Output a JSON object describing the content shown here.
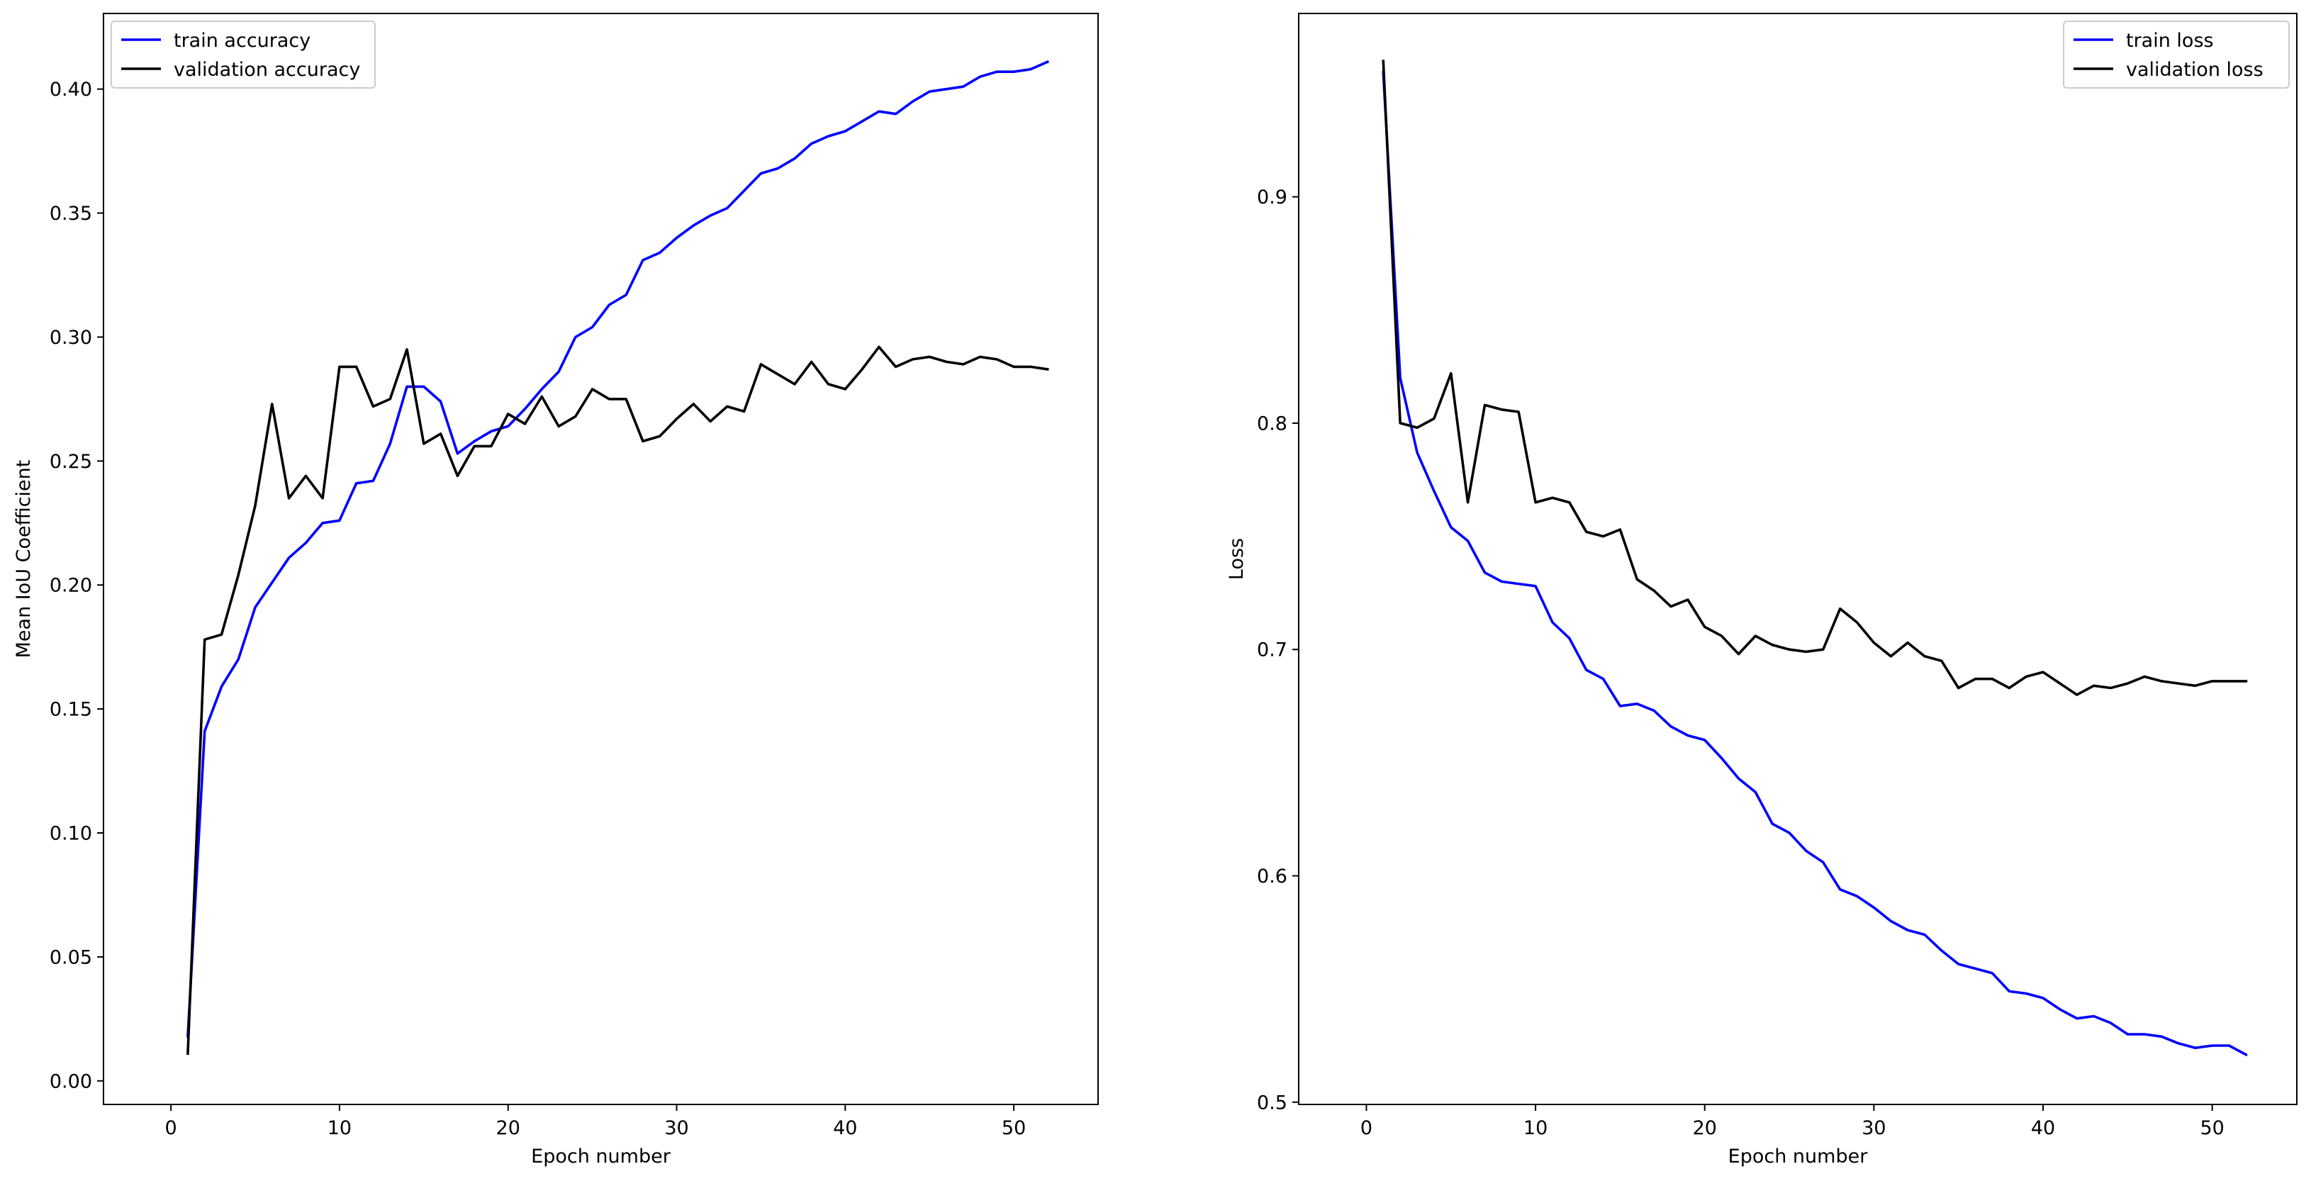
{
  "chart_data": [
    {
      "type": "line",
      "xlabel": "Epoch number",
      "ylabel": "Mean IoU Coefficient",
      "xlim": [
        -4,
        55
      ],
      "ylim": [
        -0.0095,
        0.4305
      ],
      "xticks": [
        0,
        10,
        20,
        30,
        40,
        50
      ],
      "xtick_labels": [
        "0",
        "10",
        "20",
        "30",
        "40",
        "50"
      ],
      "yticks": [
        0.0,
        0.05,
        0.1,
        0.15,
        0.2,
        0.25,
        0.3,
        0.35,
        0.4
      ],
      "ytick_labels": [
        "0.00",
        "0.05",
        "0.10",
        "0.15",
        "0.20",
        "0.25",
        "0.30",
        "0.35",
        "0.40"
      ],
      "legend_position": "top-left",
      "grid": false,
      "series": [
        {
          "name": "train accuracy",
          "color": "#0000ff",
          "x": [
            1,
            2,
            3,
            4,
            5,
            6,
            7,
            8,
            9,
            10,
            11,
            12,
            13,
            14,
            15,
            16,
            17,
            18,
            19,
            20,
            21,
            22,
            23,
            24,
            25,
            26,
            27,
            28,
            29,
            30,
            31,
            32,
            33,
            34,
            35,
            36,
            37,
            38,
            39,
            40,
            41,
            42,
            43,
            44,
            45,
            46,
            47,
            48,
            49,
            50,
            51,
            52
          ],
          "y": [
            0.018,
            0.141,
            0.159,
            0.17,
            0.191,
            0.201,
            0.211,
            0.217,
            0.225,
            0.226,
            0.241,
            0.242,
            0.257,
            0.28,
            0.28,
            0.274,
            0.253,
            0.258,
            0.262,
            0.264,
            0.271,
            0.279,
            0.286,
            0.3,
            0.304,
            0.313,
            0.317,
            0.331,
            0.334,
            0.34,
            0.345,
            0.349,
            0.352,
            0.359,
            0.366,
            0.368,
            0.372,
            0.378,
            0.381,
            0.383,
            0.387,
            0.391,
            0.39,
            0.395,
            0.399,
            0.4,
            0.401,
            0.405,
            0.407,
            0.407,
            0.408,
            0.411
          ]
        },
        {
          "name": "validation accuracy",
          "color": "#000000",
          "x": [
            1,
            2,
            3,
            4,
            5,
            6,
            7,
            8,
            9,
            10,
            11,
            12,
            13,
            14,
            15,
            16,
            17,
            18,
            19,
            20,
            21,
            22,
            23,
            24,
            25,
            26,
            27,
            28,
            29,
            30,
            31,
            32,
            33,
            34,
            35,
            36,
            37,
            38,
            39,
            40,
            41,
            42,
            43,
            44,
            45,
            46,
            47,
            48,
            49,
            50,
            51,
            52
          ],
          "y": [
            0.011,
            0.178,
            0.18,
            0.204,
            0.232,
            0.273,
            0.235,
            0.244,
            0.235,
            0.288,
            0.288,
            0.272,
            0.275,
            0.295,
            0.257,
            0.261,
            0.244,
            0.256,
            0.256,
            0.269,
            0.265,
            0.276,
            0.264,
            0.268,
            0.279,
            0.275,
            0.275,
            0.258,
            0.26,
            0.267,
            0.273,
            0.266,
            0.272,
            0.27,
            0.289,
            0.285,
            0.281,
            0.29,
            0.281,
            0.279,
            0.287,
            0.296,
            0.288,
            0.291,
            0.292,
            0.29,
            0.289,
            0.292,
            0.291,
            0.288,
            0.288,
            0.287
          ]
        }
      ]
    },
    {
      "type": "line",
      "xlabel": "Epoch number",
      "ylabel": "Loss",
      "xlim": [
        -4,
        55
      ],
      "ylim": [
        0.499,
        0.981
      ],
      "xticks": [
        0,
        10,
        20,
        30,
        40,
        50
      ],
      "xtick_labels": [
        "0",
        "10",
        "20",
        "30",
        "40",
        "50"
      ],
      "yticks": [
        0.5,
        0.6,
        0.7,
        0.8,
        0.9
      ],
      "ytick_labels": [
        "0.5",
        "0.6",
        "0.7",
        "0.8",
        "0.9"
      ],
      "legend_position": "top-right",
      "grid": false,
      "series": [
        {
          "name": "train loss",
          "color": "#0000ff",
          "x": [
            1,
            2,
            3,
            4,
            5,
            6,
            7,
            8,
            9,
            10,
            11,
            12,
            13,
            14,
            15,
            16,
            17,
            18,
            19,
            20,
            21,
            22,
            23,
            24,
            25,
            26,
            27,
            28,
            29,
            30,
            31,
            32,
            33,
            34,
            35,
            36,
            37,
            38,
            39,
            40,
            41,
            42,
            43,
            44,
            45,
            46,
            47,
            48,
            49,
            50,
            51,
            52
          ],
          "y": [
            0.955,
            0.82,
            0.787,
            0.77,
            0.754,
            0.748,
            0.734,
            0.73,
            0.729,
            0.728,
            0.712,
            0.705,
            0.691,
            0.687,
            0.675,
            0.676,
            0.673,
            0.666,
            0.662,
            0.66,
            0.652,
            0.643,
            0.637,
            0.623,
            0.619,
            0.611,
            0.606,
            0.594,
            0.591,
            0.586,
            0.58,
            0.576,
            0.574,
            0.567,
            0.561,
            0.559,
            0.557,
            0.549,
            0.548,
            0.546,
            0.541,
            0.537,
            0.538,
            0.535,
            0.53,
            0.53,
            0.529,
            0.526,
            0.524,
            0.525,
            0.525,
            0.521
          ]
        },
        {
          "name": "validation loss",
          "color": "#000000",
          "x": [
            1,
            2,
            3,
            4,
            5,
            6,
            7,
            8,
            9,
            10,
            11,
            12,
            13,
            14,
            15,
            16,
            17,
            18,
            19,
            20,
            21,
            22,
            23,
            24,
            25,
            26,
            27,
            28,
            29,
            30,
            31,
            32,
            33,
            34,
            35,
            36,
            37,
            38,
            39,
            40,
            41,
            42,
            43,
            44,
            45,
            46,
            47,
            48,
            49,
            50,
            51,
            52
          ],
          "y": [
            0.96,
            0.8,
            0.798,
            0.802,
            0.822,
            0.765,
            0.808,
            0.806,
            0.805,
            0.765,
            0.767,
            0.765,
            0.752,
            0.75,
            0.753,
            0.731,
            0.726,
            0.719,
            0.722,
            0.71,
            0.706,
            0.698,
            0.706,
            0.702,
            0.7,
            0.699,
            0.7,
            0.718,
            0.712,
            0.703,
            0.697,
            0.703,
            0.697,
            0.695,
            0.683,
            0.687,
            0.687,
            0.683,
            0.688,
            0.69,
            0.685,
            0.68,
            0.684,
            0.683,
            0.685,
            0.688,
            0.686,
            0.685,
            0.684,
            0.686,
            0.686,
            0.686
          ]
        }
      ]
    }
  ]
}
